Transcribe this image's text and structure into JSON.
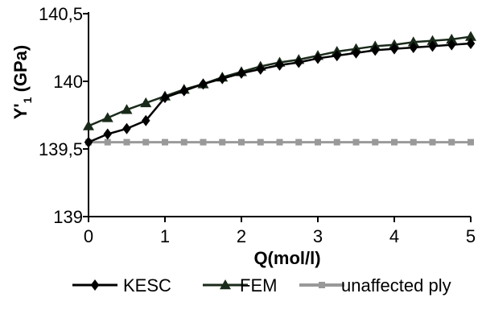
{
  "chart_data": {
    "type": "line",
    "xlabel": "Q(mol/l)",
    "ylabel_main": "Y'",
    "ylabel_sub": "1",
    "ylabel_unit": " (GPa)",
    "xlim": [
      0,
      5
    ],
    "ylim": [
      139,
      140.5
    ],
    "xticks": [
      0,
      1,
      2,
      3,
      4,
      5
    ],
    "xtick_labels": [
      "0",
      "1",
      "2",
      "3",
      "4",
      "5"
    ],
    "yticks": [
      139,
      139.5,
      140,
      140.5
    ],
    "ytick_labels": [
      "139",
      "139,5",
      "140",
      "140,5"
    ],
    "grid": false,
    "legend_position": "bottom",
    "series": [
      {
        "name": "KESC",
        "marker": "diamond",
        "color": "#000000",
        "x": [
          0,
          0.25,
          0.5,
          0.75,
          1,
          1.25,
          1.5,
          1.75,
          2,
          2.25,
          2.5,
          2.75,
          3,
          3.25,
          3.5,
          3.75,
          4,
          4.25,
          4.5,
          4.75,
          5
        ],
        "y": [
          139.55,
          139.61,
          139.65,
          139.71,
          139.88,
          139.93,
          139.98,
          140.02,
          140.06,
          140.09,
          140.12,
          140.14,
          140.17,
          140.19,
          140.21,
          140.23,
          140.24,
          140.25,
          140.26,
          140.27,
          140.28
        ]
      },
      {
        "name": "FEM",
        "marker": "triangle",
        "color": "#1a2a1a",
        "x": [
          0,
          0.25,
          0.5,
          0.75,
          1,
          1.25,
          1.5,
          1.75,
          2,
          2.25,
          2.5,
          2.75,
          3,
          3.25,
          3.5,
          3.75,
          4,
          4.25,
          4.5,
          4.75,
          5
        ],
        "y": [
          139.67,
          139.73,
          139.79,
          139.84,
          139.89,
          139.94,
          139.98,
          140.03,
          140.07,
          140.11,
          140.14,
          140.16,
          140.19,
          140.22,
          140.24,
          140.26,
          140.27,
          140.29,
          140.3,
          140.31,
          140.33
        ]
      },
      {
        "name": "unaffected ply",
        "marker": "square",
        "color": "#999999",
        "x": [
          0,
          0.25,
          0.5,
          0.75,
          1,
          1.25,
          1.5,
          1.75,
          2,
          2.25,
          2.5,
          2.75,
          3,
          3.25,
          3.5,
          3.75,
          4,
          4.25,
          4.5,
          4.75,
          5
        ],
        "y": [
          139.55,
          139.55,
          139.55,
          139.55,
          139.55,
          139.55,
          139.55,
          139.55,
          139.55,
          139.55,
          139.55,
          139.55,
          139.55,
          139.55,
          139.55,
          139.55,
          139.55,
          139.55,
          139.55,
          139.55,
          139.55
        ]
      }
    ]
  }
}
